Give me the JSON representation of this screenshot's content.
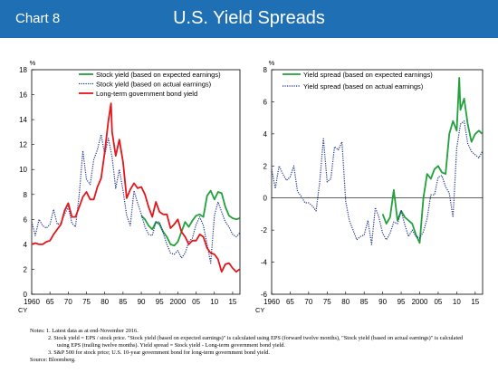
{
  "header": {
    "chart_label": "Chart 8",
    "title": "U.S. Yield Spreads",
    "colors": {
      "header_bg": "#1f6fb4",
      "header_text": "#ffffff"
    }
  },
  "chart_data": [
    {
      "type": "line",
      "unit_label": "%",
      "xlabel": "CY",
      "xlim": [
        1960,
        2017
      ],
      "ylim": [
        0,
        18
      ],
      "x_ticks": [
        1960,
        1965,
        1970,
        1975,
        1980,
        1985,
        1990,
        1995,
        2000,
        2005,
        2010,
        2015
      ],
      "x_tick_labels": [
        "1960",
        "65",
        "70",
        "75",
        "80",
        "85",
        "90",
        "95",
        "2000",
        "05",
        "10",
        "15"
      ],
      "y_ticks": [
        0,
        2,
        4,
        6,
        8,
        10,
        12,
        14,
        16,
        18
      ],
      "legend_position": "top-right",
      "series": [
        {
          "name": "Stock yield (based on expected earnings)",
          "color": "#21a03c",
          "style": "solid",
          "x": [
            1990,
            1991,
            1992,
            1993,
            1994,
            1995,
            1996,
            1997,
            1998,
            1999,
            2000,
            2001,
            2002,
            2003,
            2004,
            2005,
            2006,
            2007,
            2008,
            2009,
            2010,
            2011,
            2012,
            2013,
            2014,
            2015,
            2016,
            2016.9
          ],
          "y": [
            6.3,
            6.0,
            5.5,
            5.2,
            5.8,
            5.6,
            5.0,
            4.6,
            4.0,
            3.9,
            4.2,
            5.0,
            5.8,
            5.4,
            5.9,
            6.3,
            6.4,
            6.2,
            7.9,
            8.3,
            7.6,
            8.2,
            8.1,
            7.0,
            6.3,
            6.1,
            6.0,
            6.1
          ]
        },
        {
          "name": "Stock yield (based on actual earnings)",
          "color": "#1c2f8c",
          "style": "dotted",
          "x": [
            1960,
            1961,
            1962,
            1963,
            1964,
            1965,
            1966,
            1967,
            1968,
            1969,
            1970,
            1971,
            1972,
            1973,
            1974,
            1975,
            1976,
            1977,
            1978,
            1979,
            1980,
            1981,
            1982,
            1983,
            1984,
            1985,
            1986,
            1987,
            1988,
            1989,
            1990,
            1991,
            1992,
            1993,
            1994,
            1995,
            1996,
            1997,
            1998,
            1999,
            2000,
            2001,
            2002,
            2003,
            2004,
            2005,
            2006,
            2007,
            2008,
            2009,
            2010,
            2011,
            2012,
            2013,
            2014,
            2015,
            2016,
            2016.9
          ],
          "y": [
            5.8,
            4.7,
            6.0,
            5.5,
            5.3,
            5.6,
            6.8,
            5.6,
            5.7,
            6.4,
            7.0,
            5.7,
            5.4,
            8.0,
            11.5,
            9.2,
            8.8,
            10.8,
            11.6,
            12.8,
            11.2,
            12.5,
            11.0,
            8.5,
            10.0,
            8.3,
            6.3,
            5.5,
            8.3,
            7.3,
            6.4,
            5.4,
            4.8,
            4.7,
            5.8,
            5.8,
            4.9,
            4.0,
            3.3,
            3.2,
            3.5,
            2.9,
            3.3,
            4.2,
            4.5,
            5.6,
            6.2,
            5.5,
            4.0,
            2.5,
            6.3,
            7.4,
            6.6,
            5.8,
            5.4,
            4.8,
            4.6,
            4.9
          ]
        },
        {
          "name": "Long-term government bond yield",
          "color": "#e3161b",
          "style": "solid",
          "x": [
            1960,
            1961,
            1962,
            1963,
            1964,
            1965,
            1966,
            1967,
            1968,
            1969,
            1970,
            1971,
            1972,
            1973,
            1974,
            1975,
            1976,
            1977,
            1978,
            1979,
            1980,
            1981,
            1981.7,
            1982,
            1983,
            1984,
            1985,
            1986,
            1987,
            1988,
            1989,
            1990,
            1991,
            1992,
            1993,
            1994,
            1995,
            1996,
            1997,
            1998,
            1999,
            2000,
            2001,
            2002,
            2003,
            2004,
            2005,
            2006,
            2007,
            2008,
            2009,
            2010,
            2011,
            2012,
            2013,
            2014,
            2015,
            2016,
            2016.9
          ],
          "y": [
            4.0,
            4.1,
            4.0,
            4.0,
            4.2,
            4.3,
            4.8,
            5.2,
            5.6,
            6.7,
            7.3,
            6.2,
            6.2,
            7.0,
            7.8,
            8.2,
            7.6,
            7.6,
            8.6,
            9.3,
            11.4,
            13.9,
            15.3,
            13.0,
            11.1,
            12.4,
            10.6,
            7.7,
            8.4,
            8.9,
            8.5,
            8.6,
            8.0,
            7.0,
            6.2,
            7.4,
            6.6,
            6.4,
            6.4,
            5.3,
            5.6,
            6.0,
            5.0,
            4.6,
            4.0,
            4.3,
            4.3,
            4.8,
            4.6,
            3.7,
            3.3,
            3.2,
            2.8,
            1.8,
            2.4,
            2.5,
            2.1,
            1.8,
            2.0
          ]
        }
      ]
    },
    {
      "type": "line",
      "unit_label": "%",
      "xlabel": "CY",
      "xlim": [
        1960,
        2017
      ],
      "ylim": [
        -6,
        8
      ],
      "x_ticks": [
        1960,
        1965,
        1970,
        1975,
        1980,
        1985,
        1990,
        1995,
        2000,
        2005,
        2010,
        2015
      ],
      "x_tick_labels": [
        "1960",
        "65",
        "70",
        "75",
        "80",
        "85",
        "90",
        "95",
        "2000",
        "05",
        "10",
        "15"
      ],
      "y_ticks": [
        -6,
        -4,
        -2,
        0,
        2,
        4,
        6,
        8
      ],
      "legend_position": "top-left",
      "series": [
        {
          "name": "Yield spread (based on expected earnings)",
          "color": "#21a03c",
          "style": "solid",
          "x": [
            1990,
            1991,
            1992,
            1993,
            1994,
            1995,
            1996,
            1997,
            1998,
            1999,
            2000,
            2001,
            2002,
            2003,
            2004,
            2005,
            2006,
            2007,
            2008,
            2009,
            2010,
            2010.7,
            2011,
            2012,
            2013,
            2014,
            2015,
            2016,
            2016.9
          ],
          "y": [
            -1.0,
            -1.6,
            -1.2,
            0.5,
            -1.4,
            -0.8,
            -1.2,
            -1.4,
            -1.6,
            -2.3,
            -2.8,
            0.0,
            1.5,
            1.2,
            1.8,
            2.0,
            1.6,
            1.5,
            4.0,
            4.8,
            4.2,
            7.5,
            5.5,
            6.2,
            4.6,
            3.5,
            4.0,
            4.2,
            4.0
          ]
        },
        {
          "name": "Yield spread (based on actual earnings)",
          "color": "#1c2f8c",
          "style": "dotted",
          "x": [
            1960,
            1961,
            1962,
            1963,
            1964,
            1965,
            1966,
            1967,
            1968,
            1969,
            1970,
            1971,
            1972,
            1973,
            1974,
            1975,
            1976,
            1977,
            1978,
            1979,
            1980,
            1981,
            1982,
            1983,
            1984,
            1985,
            1986,
            1987,
            1988,
            1989,
            1990,
            1991,
            1992,
            1993,
            1994,
            1995,
            1996,
            1997,
            1998,
            1999,
            2000,
            2001,
            2002,
            2003,
            2004,
            2005,
            2006,
            2007,
            2008,
            2009,
            2010,
            2011,
            2012,
            2013,
            2014,
            2015,
            2016,
            2016.9
          ],
          "y": [
            1.8,
            0.6,
            2.0,
            1.5,
            1.1,
            1.3,
            2.0,
            0.4,
            0.1,
            -0.3,
            -0.3,
            -0.5,
            -0.8,
            1.0,
            3.7,
            1.0,
            1.2,
            3.2,
            3.0,
            3.5,
            -0.2,
            -1.4,
            -2.0,
            -2.6,
            -2.4,
            -2.3,
            -1.4,
            -2.9,
            -0.6,
            -1.2,
            -2.2,
            -2.6,
            -2.2,
            -1.5,
            -1.6,
            -0.8,
            -1.7,
            -2.4,
            -2.0,
            -2.4,
            -2.5,
            -2.1,
            -1.3,
            0.2,
            0.2,
            1.3,
            1.4,
            0.7,
            0.3,
            -1.2,
            3.1,
            4.6,
            4.8,
            3.4,
            2.9,
            2.7,
            2.5,
            2.9
          ]
        }
      ]
    }
  ],
  "notes": {
    "lines": [
      "Notes: 1. Latest data as at end-November 2016.",
      "2. Stock yield = EPS / stock price. \"Stock yield (based on expected earnings)\" is calculated using EPS (forward twelve months), \"Stock yield (based on actual earnings)\" is calculated",
      "using EPS (trailing twelve months). Yield spread = Stock yield - Long-term government bond yield.",
      "3. S&P 500 for stock price; U.S. 10-year government bond for long-term government bond yield.",
      "Source: Bloomberg."
    ]
  }
}
